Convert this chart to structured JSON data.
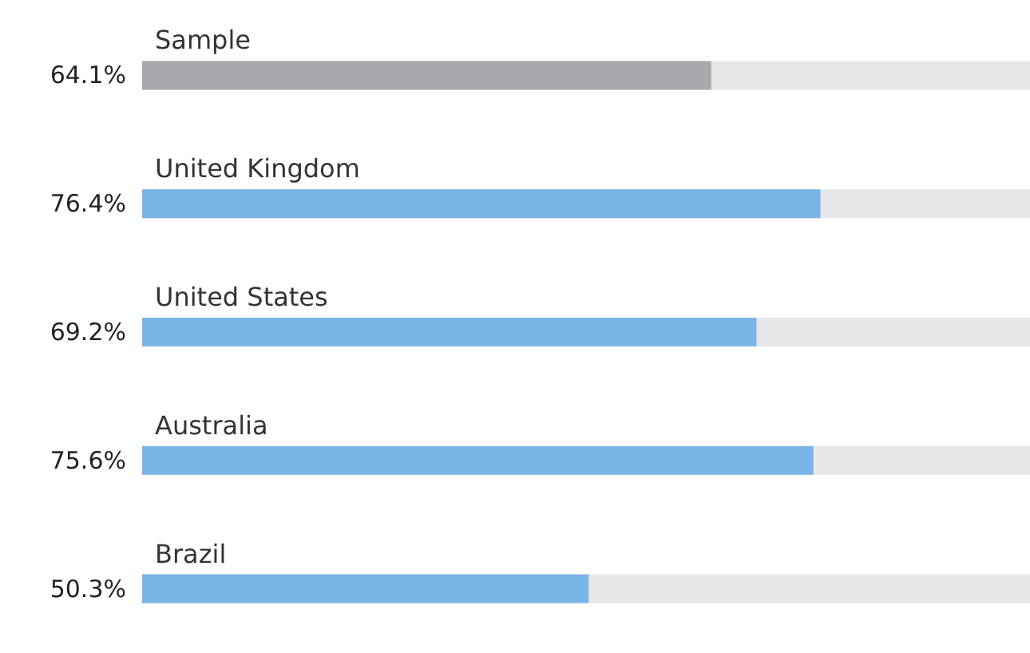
{
  "chart_data": {
    "type": "bar",
    "orientation": "horizontal",
    "categories": [
      "Sample",
      "United Kingdom",
      "United States",
      "Australia",
      "Brazil"
    ],
    "values": [
      64.1,
      76.4,
      69.2,
      75.6,
      50.3
    ],
    "value_labels": [
      "64.1%",
      "76.4%",
      "69.2%",
      "75.6%",
      "50.3%"
    ],
    "colors": [
      "#a7a8ab",
      "#7ab5e8",
      "#7ab5e8",
      "#7ab5e8",
      "#7ab5e8"
    ],
    "xlim": [
      0,
      100
    ],
    "tick_labels": false
  }
}
